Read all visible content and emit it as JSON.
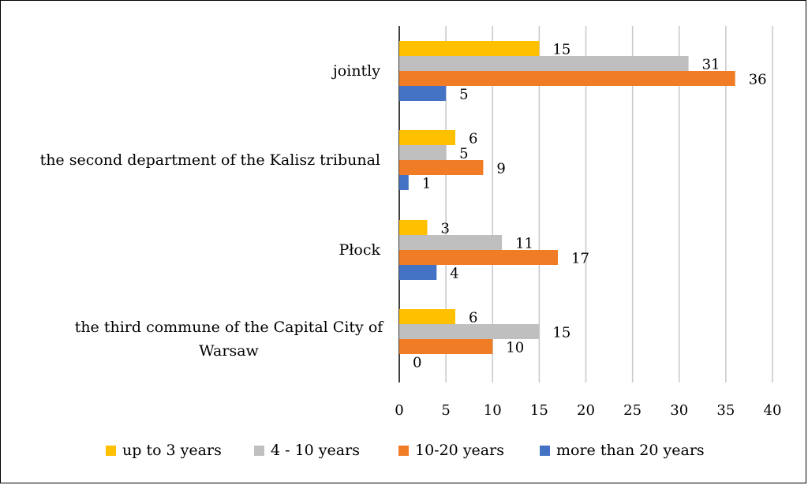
{
  "chart_data": {
    "type": "bar",
    "orientation": "horizontal",
    "title": "",
    "xlabel": "",
    "ylabel": "",
    "xlim": [
      0,
      40
    ],
    "x_ticks": [
      "0",
      "5",
      "10",
      "15",
      "20",
      "25",
      "30",
      "35",
      "40"
    ],
    "grid": true,
    "legend_position": "bottom",
    "categories": [
      "jointly",
      "the second department of the Kalisz tribunal",
      "Płock",
      "the third commune of the Capital City of Warsaw"
    ],
    "series": [
      {
        "name": "up to 3 years",
        "color": "#FFC000",
        "values": [
          15,
          6,
          3,
          6
        ]
      },
      {
        "name": "4 - 10 years",
        "color": "#BFBFBF",
        "values": [
          31,
          5,
          11,
          15
        ]
      },
      {
        "name": "10-20 years",
        "color": "#F07D26",
        "values": [
          36,
          9,
          17,
          10
        ]
      },
      {
        "name": "more than 20 years",
        "color": "#4472C4",
        "values": [
          5,
          1,
          4,
          0
        ]
      }
    ]
  }
}
